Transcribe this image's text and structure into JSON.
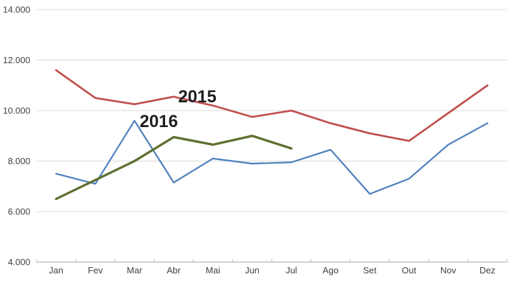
{
  "chart_data": {
    "type": "line",
    "title": "",
    "categories": [
      "Jan",
      "Fev",
      "Mar",
      "Abr",
      "Mai",
      "Jun",
      "Jul",
      "Ago",
      "Set",
      "Out",
      "Nov",
      "Dez"
    ],
    "y_axis": {
      "min": 4000,
      "max": 14000,
      "step": 2000,
      "tick_labels": [
        "4.000",
        "6.000",
        "8.000",
        "10.000",
        "12.000",
        "14.000"
      ]
    },
    "x_axis": {
      "label": "",
      "ticks_between_categories": true
    },
    "grid": true,
    "legend": "none",
    "series": [
      {
        "id": "blue",
        "label": "",
        "color": "#4f81bd",
        "stroke_width": 2.3,
        "values": [
          7500,
          7100,
          9600,
          7150,
          8100,
          7900,
          7950,
          8450,
          6700,
          7300,
          8650,
          9500
        ]
      },
      {
        "id": "red",
        "label": "2015",
        "color": "#c0504d",
        "stroke_width": 2.8,
        "values": [
          11600,
          10500,
          10250,
          10550,
          10200,
          9750,
          10000,
          9500,
          9100,
          8800,
          9900,
          11000
        ]
      },
      {
        "id": "green",
        "label": "2016",
        "color": "#5e7030",
        "stroke_width": 3.4,
        "values": [
          6500,
          7250,
          8000,
          8950,
          8650,
          9000,
          8500
        ]
      }
    ],
    "annotations": [
      {
        "text": "2015",
        "x": 259,
        "y": 149
      },
      {
        "text": "2016",
        "x": 203,
        "y": 185
      }
    ],
    "colors": {
      "background": "#ffffff",
      "gridline": "#d9d9d9",
      "axis": "#b3b3b3",
      "tick_text": "#404040",
      "annotation_text": "#1f1f1f"
    }
  }
}
